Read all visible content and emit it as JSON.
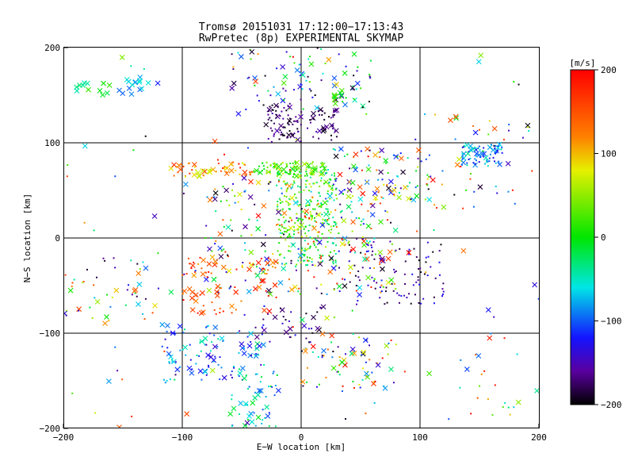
{
  "chart_data": {
    "type": "scatter",
    "title": "Tromsø 20151031 17:12:00−17:13:43",
    "subtitle": "RwPretec (8p) EXPERIMENTAL SKYMAP",
    "xlabel": "E−W location [km]",
    "ylabel": "N−S location [km]",
    "xlim": [
      -200,
      200
    ],
    "ylim": [
      -200,
      200
    ],
    "x_ticks": [
      -200,
      -100,
      0,
      100,
      200
    ],
    "y_ticks": [
      -200,
      -100,
      0,
      100,
      200
    ],
    "x_tick_labels": [
      "−200",
      "−100",
      "0",
      "100",
      "200"
    ],
    "y_tick_labels": [
      "−200",
      "−100",
      "0",
      "100",
      "200"
    ],
    "grid": true,
    "colorbar": {
      "label": "[m/s]",
      "range": [
        -200,
        200
      ],
      "ticks": [
        200,
        100,
        0,
        -100,
        -200
      ],
      "tick_labels": [
        "200",
        "100",
        "0",
        "−100",
        "−200"
      ],
      "colormap": "black-purple-blue-cyan-green-yellow-orange-red"
    },
    "markers": {
      "dot": "single radar point",
      "cross": "x marker"
    },
    "clusters": [
      {
        "x": [
          -190,
          -160
        ],
        "y": [
          150,
          165
        ],
        "v": [
          -50,
          20
        ],
        "n": 12,
        "marker": "cross"
      },
      {
        "x": [
          -155,
          -120
        ],
        "y": [
          150,
          172
        ],
        "v": [
          -120,
          -20
        ],
        "n": 16,
        "marker": "cross"
      },
      {
        "x": [
          -60,
          60
        ],
        "y": [
          130,
          200
        ],
        "v": [
          -200,
          40
        ],
        "n": 90,
        "marker": "mixed"
      },
      {
        "x": [
          -30,
          30
        ],
        "y": [
          100,
          140
        ],
        "v": [
          -200,
          -150
        ],
        "n": 110,
        "marker": "mixed"
      },
      {
        "x": [
          25,
          45
        ],
        "y": [
          140,
          155
        ],
        "v": [
          -20,
          40
        ],
        "n": 15,
        "marker": "mixed"
      },
      {
        "x": [
          -110,
          -40
        ],
        "y": [
          65,
          80
        ],
        "v": [
          60,
          200
        ],
        "n": 60,
        "marker": "mixed"
      },
      {
        "x": [
          -40,
          20
        ],
        "y": [
          65,
          80
        ],
        "v": [
          -10,
          70
        ],
        "n": 90,
        "marker": "mixed"
      },
      {
        "x": [
          20,
          110
        ],
        "y": [
          40,
          95
        ],
        "v": [
          -200,
          200
        ],
        "n": 90,
        "marker": "mixed"
      },
      {
        "x": [
          135,
          170
        ],
        "y": [
          75,
          100
        ],
        "v": [
          -140,
          -40
        ],
        "n": 70,
        "marker": "mixed"
      },
      {
        "x": [
          110,
          200
        ],
        "y": [
          30,
          130
        ],
        "v": [
          -200,
          200
        ],
        "n": 35,
        "marker": "mixed"
      },
      {
        "x": [
          -20,
          30
        ],
        "y": [
          -30,
          70
        ],
        "v": [
          -50,
          80
        ],
        "n": 280,
        "marker": "dot"
      },
      {
        "x": [
          -80,
          80
        ],
        "y": [
          -60,
          60
        ],
        "v": [
          -200,
          200
        ],
        "n": 300,
        "marker": "mixed"
      },
      {
        "x": [
          40,
          120
        ],
        "y": [
          -70,
          0
        ],
        "v": [
          -200,
          -120
        ],
        "n": 90,
        "marker": "dot"
      },
      {
        "x": [
          -100,
          -20
        ],
        "y": [
          -80,
          -20
        ],
        "v": [
          100,
          200
        ],
        "n": 80,
        "marker": "mixed"
      },
      {
        "x": [
          -200,
          -120
        ],
        "y": [
          -90,
          -20
        ],
        "v": [
          -200,
          200
        ],
        "n": 45,
        "marker": "mixed"
      },
      {
        "x": [
          -120,
          -30
        ],
        "y": [
          -150,
          -90
        ],
        "v": [
          -150,
          -20
        ],
        "n": 110,
        "marker": "mixed"
      },
      {
        "x": [
          -60,
          -20
        ],
        "y": [
          -200,
          -140
        ],
        "v": [
          -120,
          0
        ],
        "n": 50,
        "marker": "mixed"
      },
      {
        "x": [
          0,
          80
        ],
        "y": [
          -160,
          -100
        ],
        "v": [
          -200,
          200
        ],
        "n": 70,
        "marker": "mixed"
      },
      {
        "x": [
          -40,
          20
        ],
        "y": [
          -110,
          -70
        ],
        "v": [
          -200,
          -120
        ],
        "n": 35,
        "marker": "mixed"
      },
      {
        "x": [
          120,
          200
        ],
        "y": [
          -200,
          -80
        ],
        "v": [
          -200,
          200
        ],
        "n": 16,
        "marker": "mixed"
      },
      {
        "x": [
          -200,
          200
        ],
        "y": [
          -200,
          200
        ],
        "v": [
          -200,
          200
        ],
        "n": 140,
        "marker": "mixed"
      }
    ]
  }
}
